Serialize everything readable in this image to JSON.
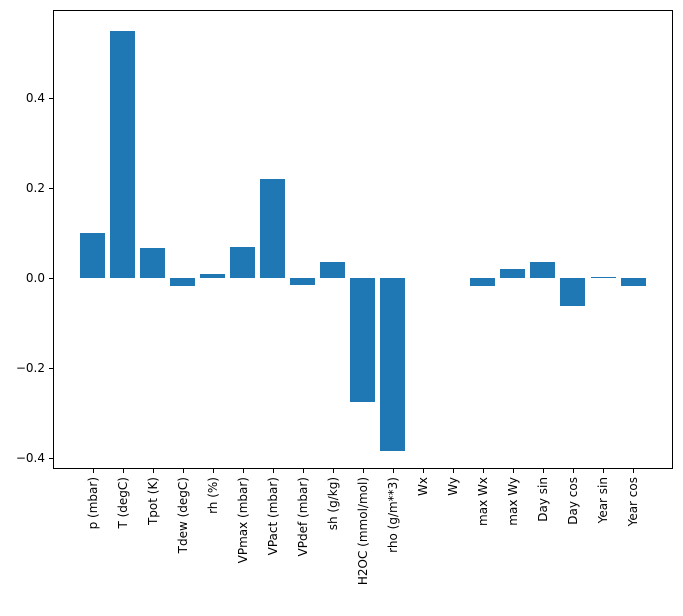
{
  "chart_data": {
    "type": "bar",
    "title": "",
    "xlabel": "",
    "ylabel": "",
    "grid": false,
    "legend_position": "none",
    "bar_color": "#1f77b4",
    "frame_color": "#000000",
    "background_color": "#ffffff",
    "ylim": [
      -0.422,
      0.596
    ],
    "categories": [
      "p (mbar)",
      "T (degC)",
      "Tpot (K)",
      "Tdew (degC)",
      "rh (%)",
      "VPmax (mbar)",
      "VPact (mbar)",
      "VPdef (mbar)",
      "sh (g/kg)",
      "H2OC (mmol/mol)",
      "rho (g/m**3)",
      "Wx",
      "Wy",
      "max Wx",
      "max Wy",
      "Day sin",
      "Day cos",
      "Year sin",
      "Year cos"
    ],
    "values": [
      0.099,
      0.55,
      0.067,
      -0.018,
      0.01,
      0.07,
      0.22,
      -0.016,
      0.036,
      -0.275,
      -0.384,
      0.0,
      0.0,
      -0.018,
      0.019,
      0.036,
      -0.062,
      0.002,
      -0.018
    ],
    "yticks": [
      0.4,
      0.2,
      0.0,
      -0.2,
      -0.4
    ],
    "ytick_labels": [
      "0.4",
      "0.2",
      "0.0",
      "−0.2",
      "−0.4"
    ]
  }
}
